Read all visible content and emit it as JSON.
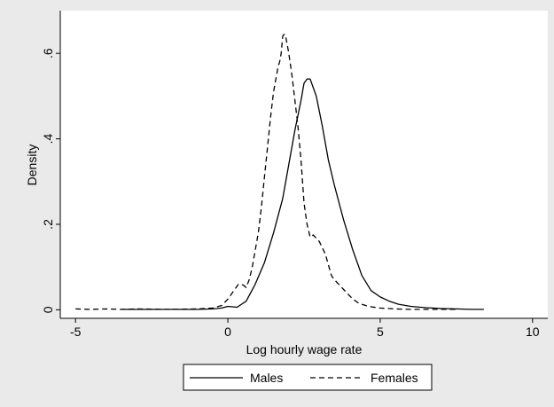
{
  "chart_data": {
    "type": "line",
    "title": "",
    "xlabel": "Log hourly wage rate",
    "ylabel": "Density",
    "xlim": [
      -5.5,
      10.5
    ],
    "ylim": [
      -0.02,
      0.7
    ],
    "xticks": [
      {
        "value": -5,
        "label": "-5"
      },
      {
        "value": 0,
        "label": "0"
      },
      {
        "value": 5,
        "label": "5"
      },
      {
        "value": 10,
        "label": "10"
      }
    ],
    "yticks": [
      {
        "value": 0,
        "label": "0"
      },
      {
        "value": 0.2,
        "label": ".2"
      },
      {
        "value": 0.4,
        "label": ".4"
      },
      {
        "value": 0.6,
        "label": ".6"
      }
    ],
    "grid": false,
    "legend_position": "bottom",
    "colors": {
      "background": "#eaeaea",
      "plot_area": "#ffffff",
      "line": "#000000"
    },
    "series": [
      {
        "name": "Males",
        "style": "solid",
        "x": [
          -3.5,
          -2,
          -1,
          -0.5,
          -0.2,
          0,
          0.3,
          0.6,
          0.9,
          1.2,
          1.5,
          1.8,
          2.0,
          2.2,
          2.4,
          2.5,
          2.6,
          2.7,
          2.9,
          3.1,
          3.3,
          3.5,
          3.8,
          4.1,
          4.4,
          4.7,
          5.0,
          5.3,
          5.6,
          6.0,
          6.5,
          7.0,
          7.5,
          8.0,
          8.4
        ],
        "y": [
          0.001,
          0.001,
          0.001,
          0.002,
          0.004,
          0.008,
          0.006,
          0.02,
          0.06,
          0.11,
          0.18,
          0.26,
          0.34,
          0.42,
          0.49,
          0.53,
          0.54,
          0.54,
          0.5,
          0.43,
          0.35,
          0.29,
          0.21,
          0.14,
          0.08,
          0.045,
          0.03,
          0.02,
          0.013,
          0.008,
          0.005,
          0.003,
          0.002,
          0.001,
          0.001
        ]
      },
      {
        "name": "Females",
        "style": "dashed",
        "x": [
          -5.0,
          -4.5,
          -4.0,
          -3.5,
          -3.0,
          -2.0,
          -1.0,
          -0.5,
          -0.2,
          0.0,
          0.2,
          0.35,
          0.5,
          0.6,
          0.7,
          0.8,
          0.9,
          1.0,
          1.1,
          1.2,
          1.3,
          1.4,
          1.5,
          1.6,
          1.65,
          1.7,
          1.75,
          1.8,
          1.85,
          1.9,
          1.95,
          2.0,
          2.1,
          2.2,
          2.3,
          2.4,
          2.5,
          2.6,
          2.7,
          2.8,
          3.0,
          3.2,
          3.4,
          3.5,
          3.7,
          3.9,
          4.1,
          4.3,
          4.6,
          5.0,
          5.5,
          6.0,
          6.5,
          7.0,
          7.5
        ],
        "y": [
          0.002,
          0.001,
          0.002,
          0.001,
          0.002,
          0.001,
          0.002,
          0.004,
          0.01,
          0.025,
          0.045,
          0.06,
          0.058,
          0.052,
          0.07,
          0.1,
          0.14,
          0.18,
          0.24,
          0.31,
          0.38,
          0.45,
          0.51,
          0.55,
          0.57,
          0.58,
          0.6,
          0.64,
          0.645,
          0.638,
          0.62,
          0.6,
          0.55,
          0.49,
          0.43,
          0.35,
          0.25,
          0.2,
          0.17,
          0.175,
          0.16,
          0.13,
          0.08,
          0.07,
          0.055,
          0.04,
          0.025,
          0.015,
          0.008,
          0.004,
          0.002,
          0.001,
          0.001,
          0.001,
          0.001
        ]
      }
    ]
  }
}
